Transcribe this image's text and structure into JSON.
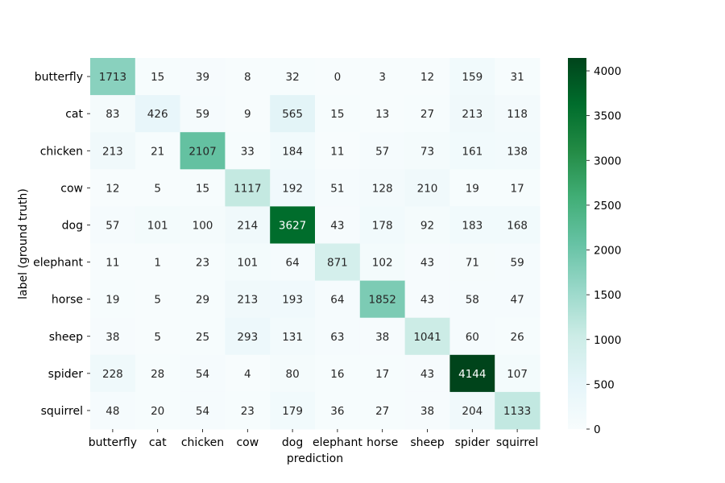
{
  "chart_data": {
    "type": "heatmap",
    "title": "",
    "xlabel": "prediction",
    "ylabel": "label (ground truth)",
    "x_categories": [
      "butterfly",
      "cat",
      "chicken",
      "cow",
      "dog",
      "elephant",
      "horse",
      "sheep",
      "spider",
      "squirrel"
    ],
    "y_categories": [
      "butterfly",
      "cat",
      "chicken",
      "cow",
      "dog",
      "elephant",
      "horse",
      "sheep",
      "spider",
      "squirrel"
    ],
    "values": [
      [
        1713,
        15,
        39,
        8,
        32,
        0,
        3,
        12,
        159,
        31
      ],
      [
        83,
        426,
        59,
        9,
        565,
        15,
        13,
        27,
        213,
        118
      ],
      [
        213,
        21,
        2107,
        33,
        184,
        11,
        57,
        73,
        161,
        138
      ],
      [
        12,
        5,
        15,
        1117,
        192,
        51,
        128,
        210,
        19,
        17
      ],
      [
        57,
        101,
        100,
        214,
        3627,
        43,
        178,
        92,
        183,
        168
      ],
      [
        11,
        1,
        23,
        101,
        64,
        871,
        102,
        43,
        71,
        59
      ],
      [
        19,
        5,
        29,
        213,
        193,
        64,
        1852,
        43,
        58,
        47
      ],
      [
        38,
        5,
        25,
        293,
        131,
        63,
        38,
        1041,
        60,
        26
      ],
      [
        228,
        28,
        54,
        4,
        80,
        16,
        17,
        43,
        4144,
        107
      ],
      [
        48,
        20,
        54,
        23,
        179,
        36,
        27,
        38,
        204,
        1133
      ]
    ],
    "colorbar": {
      "min": 0,
      "max": 4144,
      "ticks": [
        0,
        500,
        1000,
        1500,
        2000,
        2500,
        3000,
        3500,
        4000
      ],
      "colormap": "BuGn",
      "low_color": "#f7fcfd",
      "high_color": "#00441b"
    },
    "grid": false,
    "legend": "colorbar-right"
  }
}
